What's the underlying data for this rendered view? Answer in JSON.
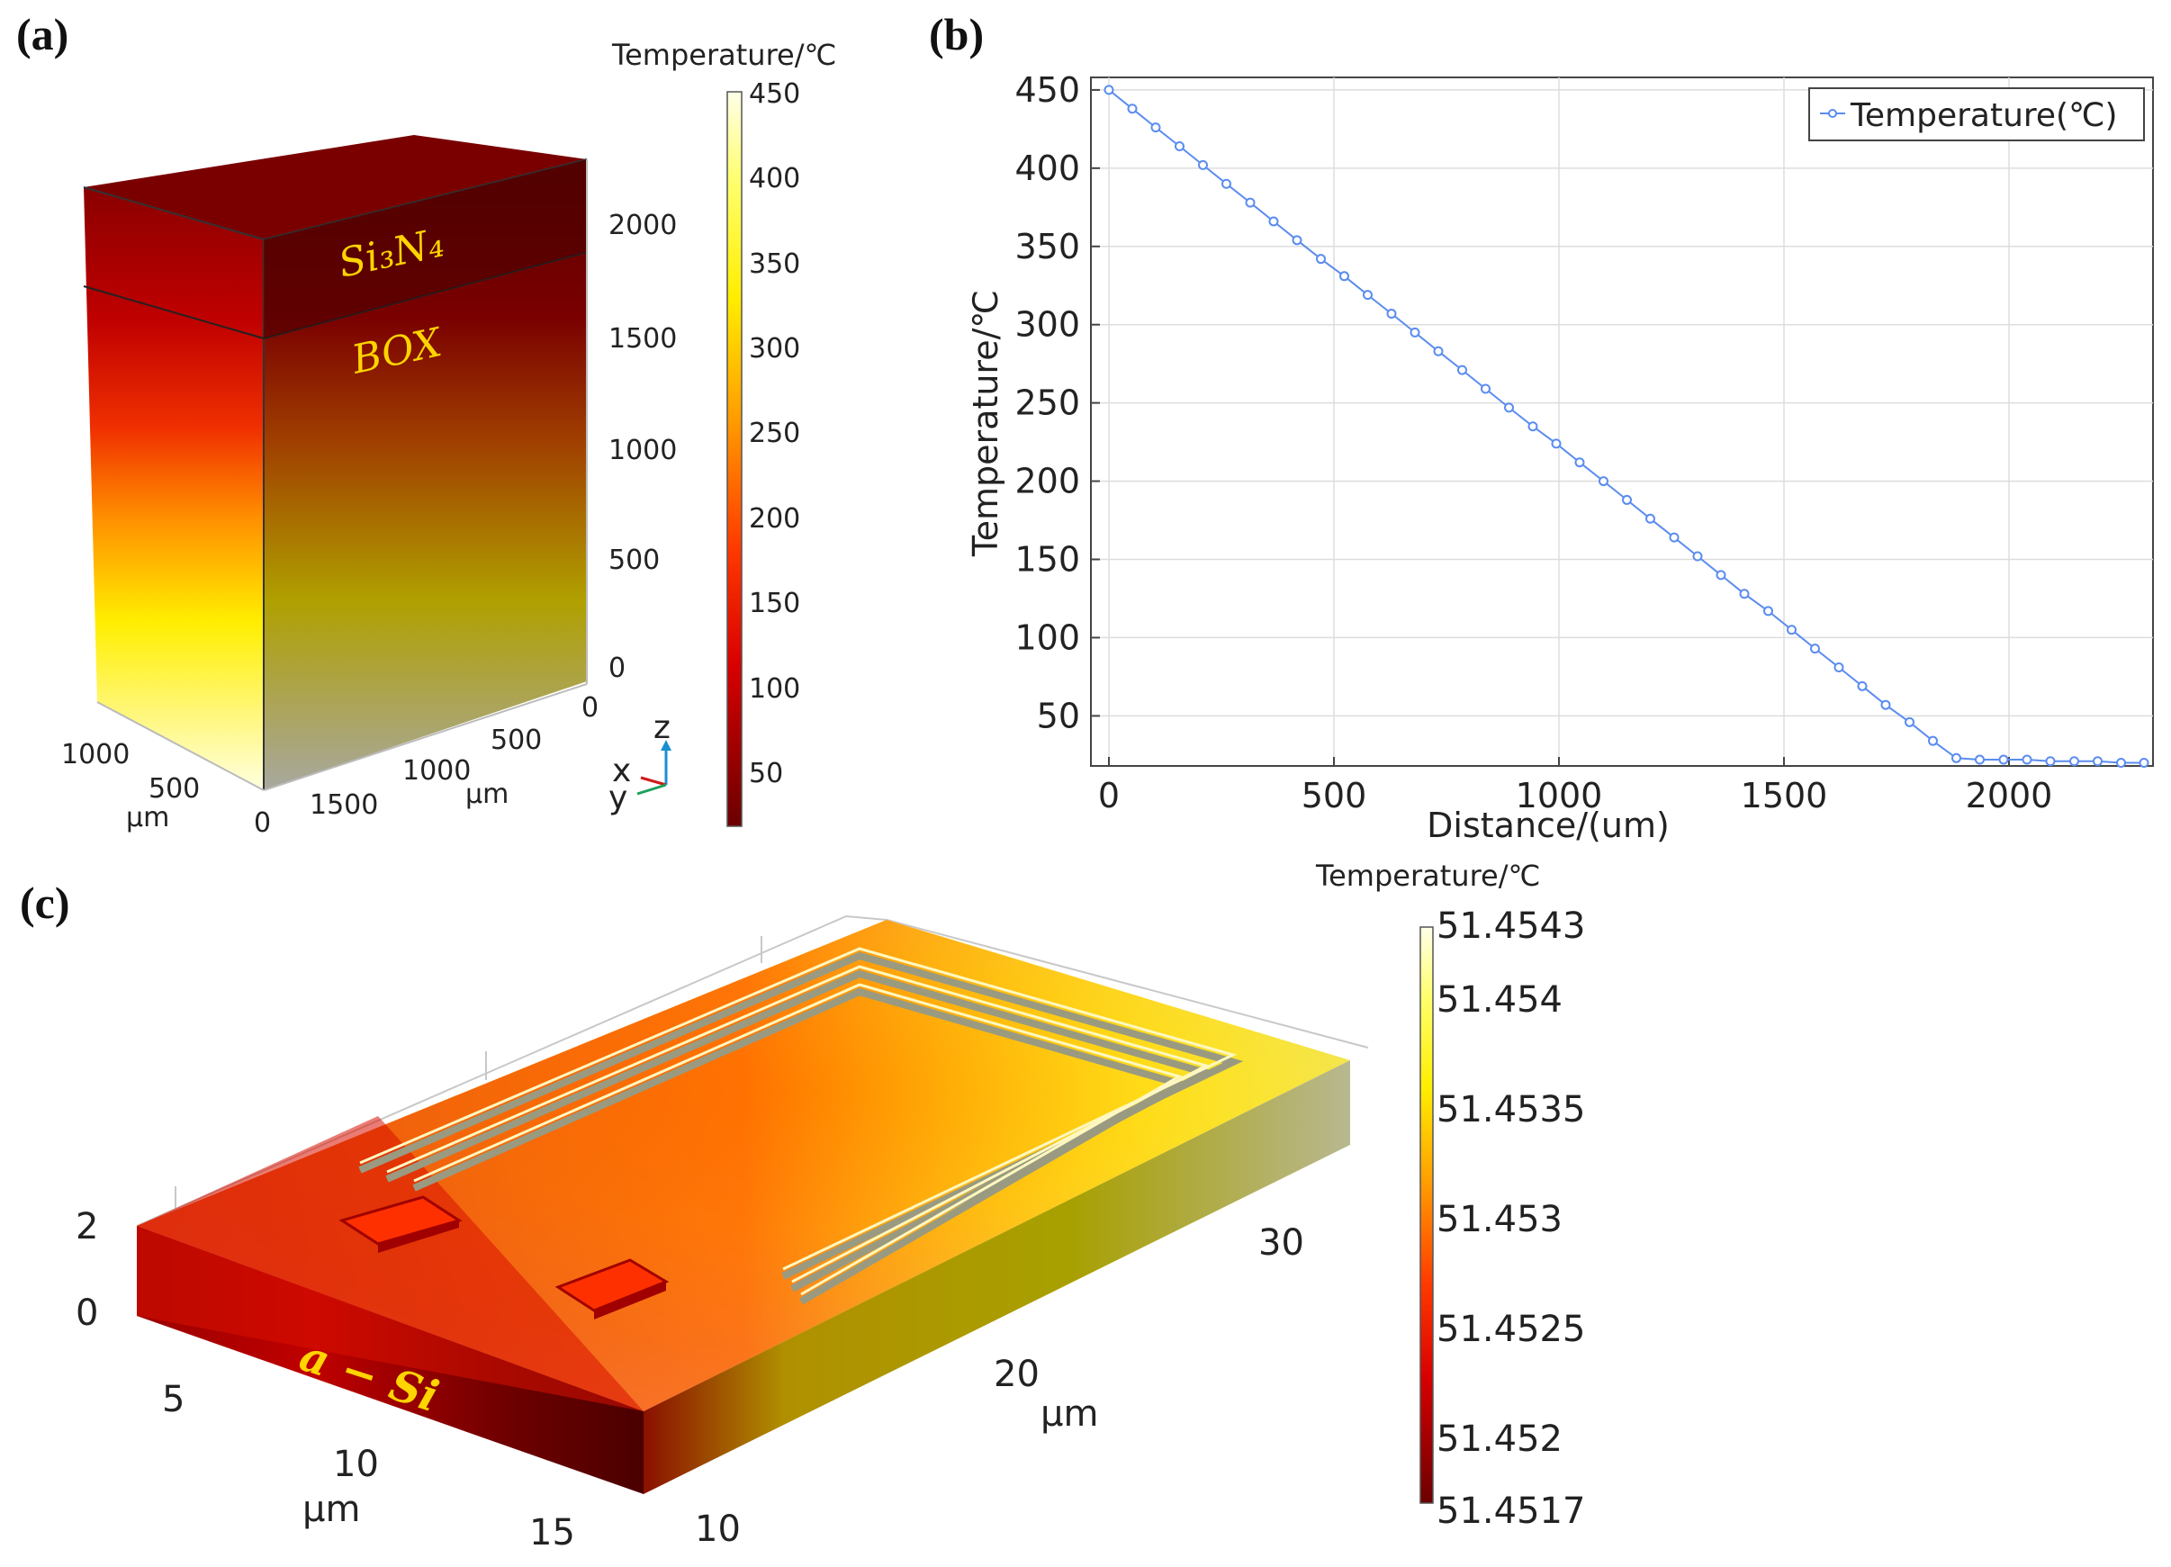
{
  "figure": {
    "panels": [
      "(a)",
      "(b)",
      "(c)"
    ]
  },
  "panel_a": {
    "colorbar_title": "Temperature/℃",
    "colorbar_ticks": [
      "450",
      "400",
      "350",
      "300",
      "250",
      "200",
      "150",
      "100",
      "50"
    ],
    "z_ticks": [
      "2000",
      "1500",
      "1000",
      "500",
      "0"
    ],
    "y_ticks": [
      "0",
      "500",
      "1000",
      "1500"
    ],
    "x_ticks": [
      "1000",
      "500",
      "0"
    ],
    "unit_label": "μm",
    "unit_label2": "μm",
    "layer_top": "Si₃N₄",
    "layer_box": "BOX",
    "triad": {
      "x": "x",
      "y": "y",
      "z": "z"
    }
  },
  "panel_c": {
    "colorbar_title": "Temperature/℃",
    "colorbar_ticks": [
      "51.4543",
      "51.454",
      "51.4535",
      "51.453",
      "51.4525",
      "51.452",
      "51.4517"
    ],
    "z_ticks": [
      "2",
      "0"
    ],
    "left_ticks": [
      "5",
      "10",
      "15"
    ],
    "right_ticks": [
      "10",
      "20",
      "30"
    ],
    "unit_left": "μm",
    "unit_right": "μm",
    "material": "a − Si"
  },
  "colors": {
    "line": "#5b8cf0",
    "hot": "#FFFFE8",
    "cold": "#6b0000"
  },
  "chart_data": [
    {
      "type": "line",
      "panel": "(b)",
      "title": "",
      "xlabel": "Distance/(um)",
      "ylabel": "Temperature/℃",
      "xlim": [
        -40,
        2320
      ],
      "ylim": [
        18,
        458
      ],
      "xticks": [
        0,
        500,
        1000,
        1500,
        2000
      ],
      "yticks": [
        50,
        100,
        150,
        200,
        250,
        300,
        350,
        400,
        450
      ],
      "grid": true,
      "legend": "top-right",
      "series": [
        {
          "name": "Temperature(℃)",
          "x": [
            0,
            52,
            104,
            157,
            209,
            261,
            314,
            366,
            418,
            471,
            523,
            575,
            628,
            680,
            732,
            785,
            837,
            889,
            942,
            994,
            1046,
            1099,
            1151,
            1203,
            1256,
            1308,
            1360,
            1412,
            1465,
            1517,
            1569,
            1622,
            1674,
            1726,
            1779,
            1831,
            1883,
            1935,
            1988,
            2040,
            2092,
            2145,
            2197,
            2249,
            2300
          ],
          "y": [
            450,
            438,
            426,
            414,
            402,
            390,
            378,
            366,
            354,
            342,
            331,
            319,
            307,
            295,
            283,
            271,
            259,
            247,
            235,
            224,
            212,
            200,
            188,
            176,
            164,
            152,
            140,
            128,
            117,
            105,
            93,
            81,
            69,
            57,
            46,
            34,
            23,
            22,
            22,
            22,
            21,
            21,
            21,
            20,
            20
          ]
        }
      ]
    }
  ]
}
